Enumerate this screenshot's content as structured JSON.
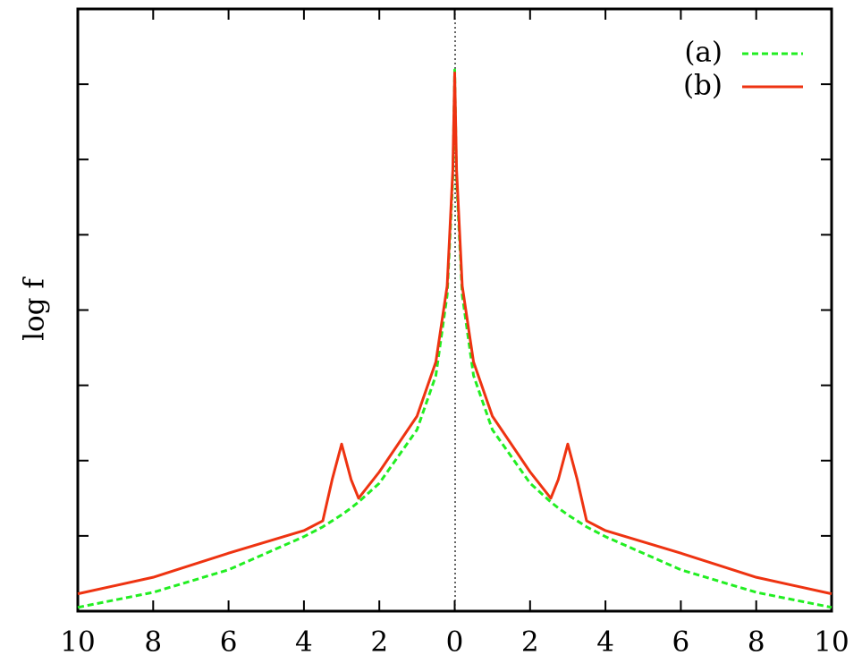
{
  "chart_data": {
    "type": "line",
    "y_label": "log f",
    "x": [
      -10,
      -8,
      -6,
      -4,
      -3.5,
      -3.25,
      -3,
      -2.75,
      -2.55,
      -2,
      -1,
      -0.5,
      -0.2,
      -0.05,
      0,
      0.05,
      0.2,
      0.5,
      1,
      2,
      2.55,
      2.75,
      3,
      3.25,
      3.5,
      4,
      6,
      8,
      10
    ],
    "series": [
      {
        "name": "(a)",
        "color": "#22ee22",
        "dash": true,
        "values": [
          0.05,
          0.25,
          0.55,
          0.99,
          1.12,
          1.2,
          1.28,
          1.37,
          1.45,
          1.7,
          2.41,
          3.13,
          4.2,
          5.74,
          7.19,
          5.74,
          4.2,
          3.13,
          2.41,
          1.7,
          1.45,
          1.37,
          1.28,
          1.2,
          1.12,
          0.99,
          0.55,
          0.25,
          0.05
        ]
      },
      {
        "name": "(b)",
        "color": "#ee3311",
        "dash": false,
        "values": [
          0.23,
          0.45,
          0.77,
          1.07,
          1.2,
          1.75,
          2.22,
          1.75,
          1.5,
          1.85,
          2.59,
          3.31,
          4.32,
          5.86,
          7.15,
          5.86,
          4.32,
          3.31,
          2.59,
          1.85,
          1.5,
          1.75,
          2.22,
          1.75,
          1.2,
          1.07,
          0.77,
          0.45,
          0.23
        ]
      }
    ],
    "xlim": [
      -10,
      10
    ],
    "xticks": [
      {
        "value": -10,
        "label": "10"
      },
      {
        "value": -8,
        "label": "8"
      },
      {
        "value": -6,
        "label": "6"
      },
      {
        "value": -4,
        "label": "4"
      },
      {
        "value": -2,
        "label": "2"
      },
      0,
      2,
      4,
      6,
      8,
      10
    ],
    "ylim": [
      0,
      8
    ],
    "yticks": [
      0,
      1,
      2,
      3,
      4,
      5,
      6,
      7
    ],
    "legend": "upper right"
  }
}
